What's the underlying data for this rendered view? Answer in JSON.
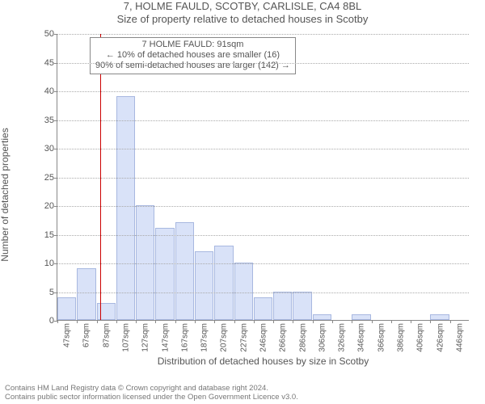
{
  "title": "7, HOLME FAULD, SCOTBY, CARLISLE, CA4 8BL",
  "subtitle": "Size of property relative to detached houses in Scotby",
  "ylabel": "Number of detached properties",
  "xaxis_title": "Distribution of detached houses by size in Scotby",
  "footer_line1": "Contains HM Land Registry data © Crown copyright and database right 2024.",
  "footer_line2": "Contains public sector information licensed under the Open Government Licence v3.0.",
  "annot": {
    "line1": "7 HOLME FAULD: 91sqm",
    "line2": "← 10% of detached houses are smaller (16)",
    "line3": "90% of semi-detached houses are larger (142) →"
  },
  "chart": {
    "type": "histogram",
    "ylim": [
      0,
      50
    ],
    "ytick_step": 5,
    "bar_fill": "#d9e2f8",
    "bar_stroke": "#a8b8e0",
    "grid_color": "#aaaaaa",
    "axis_color": "#888888",
    "ref_line_color": "#cc0000",
    "ref_line_value": 91,
    "background_color": "#ffffff",
    "text_color": "#555555",
    "title_fontsize": 13,
    "label_fontsize": 12,
    "tick_fontsize": 11,
    "bins": [
      {
        "label": "47sqm",
        "value": 4
      },
      {
        "label": "67sqm",
        "value": 9
      },
      {
        "label": "87sqm",
        "value": 3
      },
      {
        "label": "107sqm",
        "value": 39
      },
      {
        "label": "127sqm",
        "value": 20
      },
      {
        "label": "147sqm",
        "value": 16
      },
      {
        "label": "167sqm",
        "value": 17
      },
      {
        "label": "187sqm",
        "value": 12
      },
      {
        "label": "207sqm",
        "value": 13
      },
      {
        "label": "227sqm",
        "value": 10
      },
      {
        "label": "246sqm",
        "value": 4
      },
      {
        "label": "266sqm",
        "value": 5
      },
      {
        "label": "286sqm",
        "value": 5
      },
      {
        "label": "306sqm",
        "value": 1
      },
      {
        "label": "326sqm",
        "value": 0
      },
      {
        "label": "346sqm",
        "value": 1
      },
      {
        "label": "366sqm",
        "value": 0
      },
      {
        "label": "386sqm",
        "value": 0
      },
      {
        "label": "406sqm",
        "value": 0
      },
      {
        "label": "426sqm",
        "value": 1
      },
      {
        "label": "446sqm",
        "value": 0
      }
    ]
  }
}
